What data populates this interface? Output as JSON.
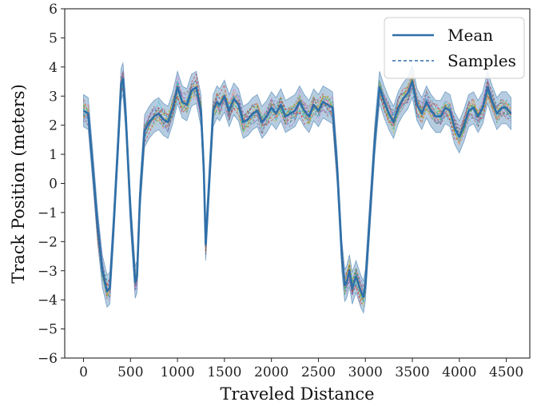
{
  "chart_data": {
    "type": "line",
    "xlabel": "Traveled Distance",
    "ylabel": "Track Position (meters)",
    "xlim": [
      -200,
      4750
    ],
    "ylim": [
      -6,
      6
    ],
    "xticks": [
      0,
      500,
      1000,
      1500,
      2000,
      2500,
      3000,
      3500,
      4000,
      4500
    ],
    "yticks": [
      -6,
      -5,
      -4,
      -3,
      -2,
      -1,
      0,
      1,
      2,
      3,
      4,
      5,
      6
    ],
    "xtick_labels": [
      "0",
      "500",
      "1000",
      "1500",
      "2000",
      "2500",
      "3000",
      "3500",
      "4000",
      "4500"
    ],
    "ytick_labels": [
      "−6",
      "−5",
      "−4",
      "−3",
      "−2",
      "−1",
      "0",
      "1",
      "2",
      "3",
      "4",
      "5",
      "6"
    ],
    "legend_position": "top-right",
    "grid": false,
    "series": [
      {
        "name": "Mean",
        "style": "solid",
        "color": "#2f6fa8",
        "x": [
          0,
          50,
          100,
          150,
          200,
          250,
          280,
          320,
          370,
          400,
          420,
          450,
          500,
          550,
          570,
          600,
          650,
          700,
          750,
          800,
          850,
          900,
          950,
          1000,
          1050,
          1100,
          1150,
          1200,
          1250,
          1280,
          1300,
          1340,
          1380,
          1420,
          1450,
          1500,
          1550,
          1600,
          1650,
          1700,
          1750,
          1800,
          1850,
          1900,
          1950,
          2000,
          2050,
          2100,
          2150,
          2200,
          2250,
          2300,
          2350,
          2400,
          2450,
          2500,
          2550,
          2600,
          2650,
          2700,
          2750,
          2780,
          2800,
          2830,
          2860,
          2900,
          2950,
          2980,
          3000,
          3050,
          3100,
          3150,
          3200,
          3250,
          3300,
          3350,
          3400,
          3450,
          3500,
          3550,
          3600,
          3650,
          3700,
          3750,
          3800,
          3850,
          3900,
          3950,
          4000,
          4050,
          4100,
          4150,
          4200,
          4250,
          4300,
          4350,
          4400,
          4450,
          4500,
          4550
        ],
        "y": [
          2.5,
          2.4,
          0.5,
          -1.5,
          -3.0,
          -3.7,
          -3.6,
          -1.5,
          1.5,
          3.4,
          3.6,
          2.3,
          -1.0,
          -3.4,
          -3.2,
          -0.5,
          1.8,
          2.1,
          2.3,
          2.4,
          2.2,
          2.1,
          2.6,
          3.3,
          2.8,
          2.7,
          3.2,
          3.3,
          2.5,
          0.5,
          -2.1,
          0.2,
          2.5,
          2.8,
          2.7,
          3.0,
          2.5,
          2.9,
          2.7,
          2.1,
          2.2,
          2.4,
          2.5,
          2.1,
          2.3,
          2.6,
          2.4,
          2.7,
          2.3,
          2.4,
          2.5,
          2.8,
          2.5,
          2.3,
          2.7,
          2.5,
          2.8,
          2.7,
          2.6,
          0.5,
          -2.5,
          -3.5,
          -3.4,
          -3.0,
          -3.6,
          -3.2,
          -3.7,
          -3.9,
          -3.5,
          -1.0,
          1.5,
          3.3,
          2.8,
          2.4,
          2.1,
          2.6,
          2.9,
          3.1,
          3.5,
          2.7,
          2.4,
          2.8,
          2.5,
          2.3,
          2.3,
          2.6,
          2.5,
          1.9,
          1.6,
          2.0,
          2.5,
          2.6,
          2.3,
          2.6,
          3.3,
          2.8,
          2.4,
          2.6,
          2.6,
          2.4
        ]
      },
      {
        "name": "Samples",
        "style": "dashed",
        "color": "#2f6fa8"
      }
    ],
    "band": {
      "spread": 0.55,
      "fill": "#2f6fa8",
      "opacity": 0.35
    },
    "sample_colors": [
      "#1f77b4",
      "#ff7f0e",
      "#2ca02c",
      "#d62728",
      "#9467bd",
      "#8c564b",
      "#e377c2",
      "#bcbd22",
      "#17becf"
    ]
  }
}
